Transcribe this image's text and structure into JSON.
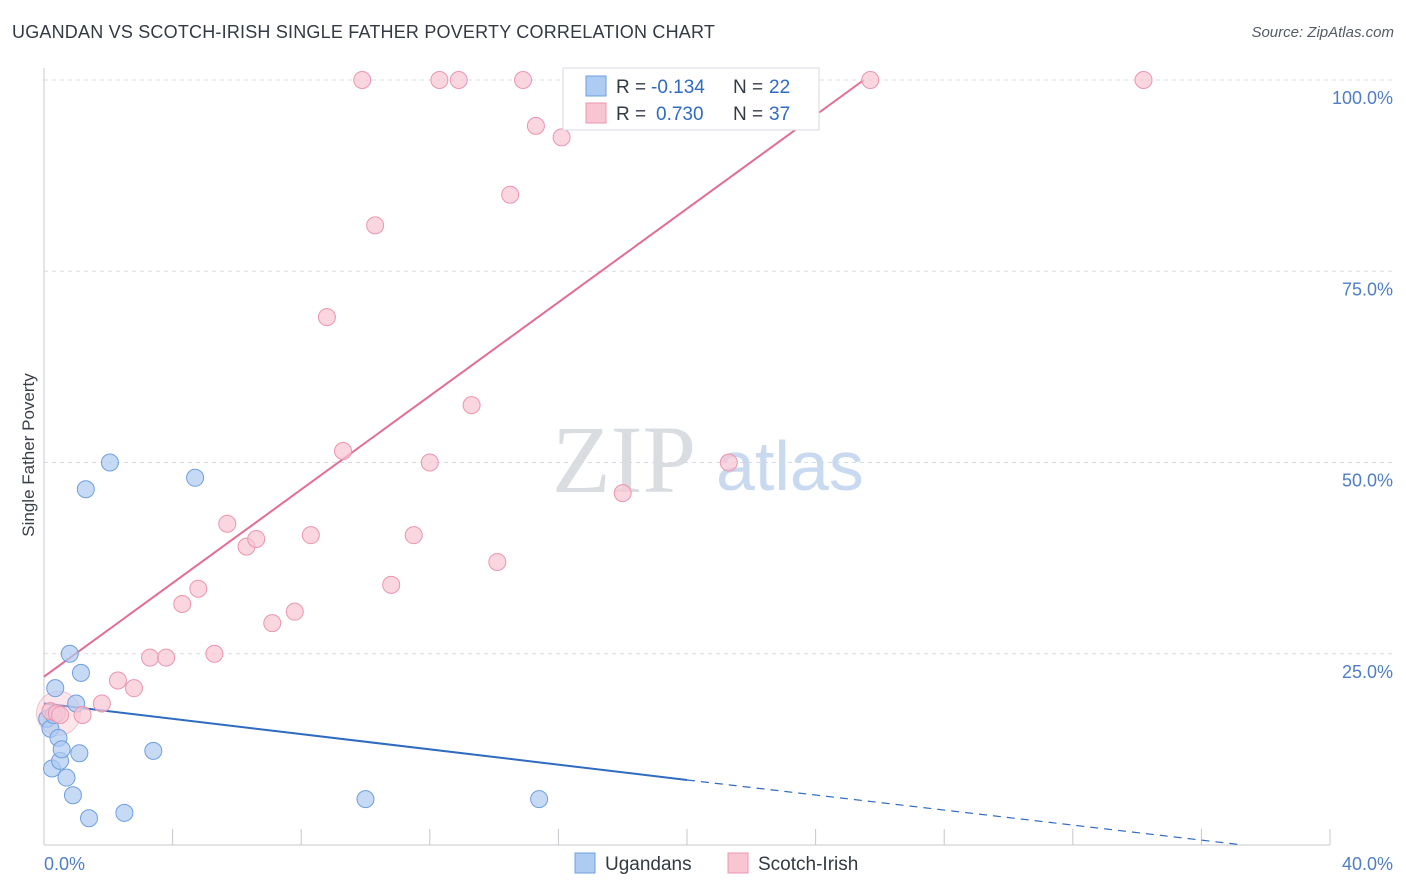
{
  "title": "UGANDAN VS SCOTCH-IRISH SINGLE FATHER POVERTY CORRELATION CHART",
  "source": "Source: ZipAtlas.com",
  "watermark": {
    "zip": "ZIP",
    "atlas": "atlas"
  },
  "chart_data": {
    "type": "scatter",
    "xlabel": "",
    "ylabel": "Single Father Poverty",
    "xlim": [
      0,
      40
    ],
    "ylim": [
      0,
      100
    ],
    "x_tick_labels": {
      "left": "0.0%",
      "right": "40.0%"
    },
    "x_minor_ticks": [
      4,
      8,
      12,
      16,
      20,
      24,
      28,
      32,
      36,
      40
    ],
    "y_ticks": [
      {
        "value": 25,
        "label": "25.0%"
      },
      {
        "value": 50,
        "label": "50.0%"
      },
      {
        "value": 75,
        "label": "75.0%"
      },
      {
        "value": 100,
        "label": "100.0%"
      }
    ],
    "grid": true,
    "colors": {
      "ugandans_fill": "#aecbf2",
      "ugandans_stroke": "#6f9fe0",
      "ugandans_line": "#2f6bc1",
      "scotch_fill": "#f8c5d3",
      "scotch_stroke": "#ec95ae",
      "scotch_line": "#e26d93",
      "grid": "#d8dce2",
      "axis_label": "#4f7ec6"
    },
    "legend": [
      {
        "series": "Ugandans",
        "r_label": "R =",
        "r_value": "-0.134",
        "n_label": "N =",
        "n_value": "22"
      },
      {
        "series": "Scotch-Irish",
        "r_label": "R =",
        "r_value": "0.730",
        "n_label": "N =",
        "n_value": "37"
      }
    ],
    "series": [
      {
        "name": "Ugandans",
        "points": [
          [
            0.1,
            16.5
          ],
          [
            0.2,
            15.2
          ],
          [
            0.25,
            10.0
          ],
          [
            0.3,
            17.0
          ],
          [
            0.35,
            20.5
          ],
          [
            0.45,
            14.0
          ],
          [
            0.5,
            11.0
          ],
          [
            0.55,
            12.5
          ],
          [
            0.7,
            8.8
          ],
          [
            0.8,
            25.0
          ],
          [
            0.9,
            6.5
          ],
          [
            1.0,
            18.5
          ],
          [
            1.1,
            12.0
          ],
          [
            1.15,
            22.5
          ],
          [
            1.3,
            46.5
          ],
          [
            1.4,
            3.5
          ],
          [
            2.05,
            50.0
          ],
          [
            2.5,
            4.2
          ],
          [
            3.4,
            12.3
          ],
          [
            4.7,
            48.0
          ],
          [
            10.0,
            6.0
          ],
          [
            15.4,
            6.0
          ]
        ],
        "trend": {
          "x0": 0,
          "y0": 18.5,
          "x1": 20,
          "y1": 8.5,
          "dash_to_x": 37.3,
          "dash_to_y": 0
        }
      },
      {
        "name": "Scotch-Irish",
        "points": [
          [
            0.2,
            17.5
          ],
          [
            0.4,
            17.2
          ],
          [
            0.5,
            17.0
          ],
          [
            1.2,
            17.0
          ],
          [
            1.8,
            18.5
          ],
          [
            2.3,
            21.5
          ],
          [
            2.8,
            20.5
          ],
          [
            3.3,
            24.5
          ],
          [
            3.8,
            24.5
          ],
          [
            4.3,
            31.5
          ],
          [
            4.8,
            33.5
          ],
          [
            5.3,
            25.0
          ],
          [
            5.7,
            42.0
          ],
          [
            6.3,
            39.0
          ],
          [
            6.6,
            40.0
          ],
          [
            7.1,
            29.0
          ],
          [
            7.8,
            30.5
          ],
          [
            8.3,
            40.5
          ],
          [
            8.8,
            69.0
          ],
          [
            9.3,
            51.5
          ],
          [
            9.9,
            100.0
          ],
          [
            10.3,
            81.0
          ],
          [
            10.8,
            34.0
          ],
          [
            11.5,
            40.5
          ],
          [
            12.0,
            50.0
          ],
          [
            12.3,
            100.0
          ],
          [
            12.9,
            100.0
          ],
          [
            13.3,
            57.5
          ],
          [
            14.1,
            37.0
          ],
          [
            14.5,
            85.0
          ],
          [
            14.9,
            100.0
          ],
          [
            15.3,
            94.0
          ],
          [
            16.1,
            92.5
          ],
          [
            18.0,
            46.0
          ],
          [
            21.3,
            50.0
          ],
          [
            25.7,
            100.0
          ],
          [
            34.2,
            100.0
          ]
        ],
        "trend": {
          "x0": 0,
          "y0": 22.0,
          "x1": 25.5,
          "y1": 100.0
        }
      }
    ]
  }
}
